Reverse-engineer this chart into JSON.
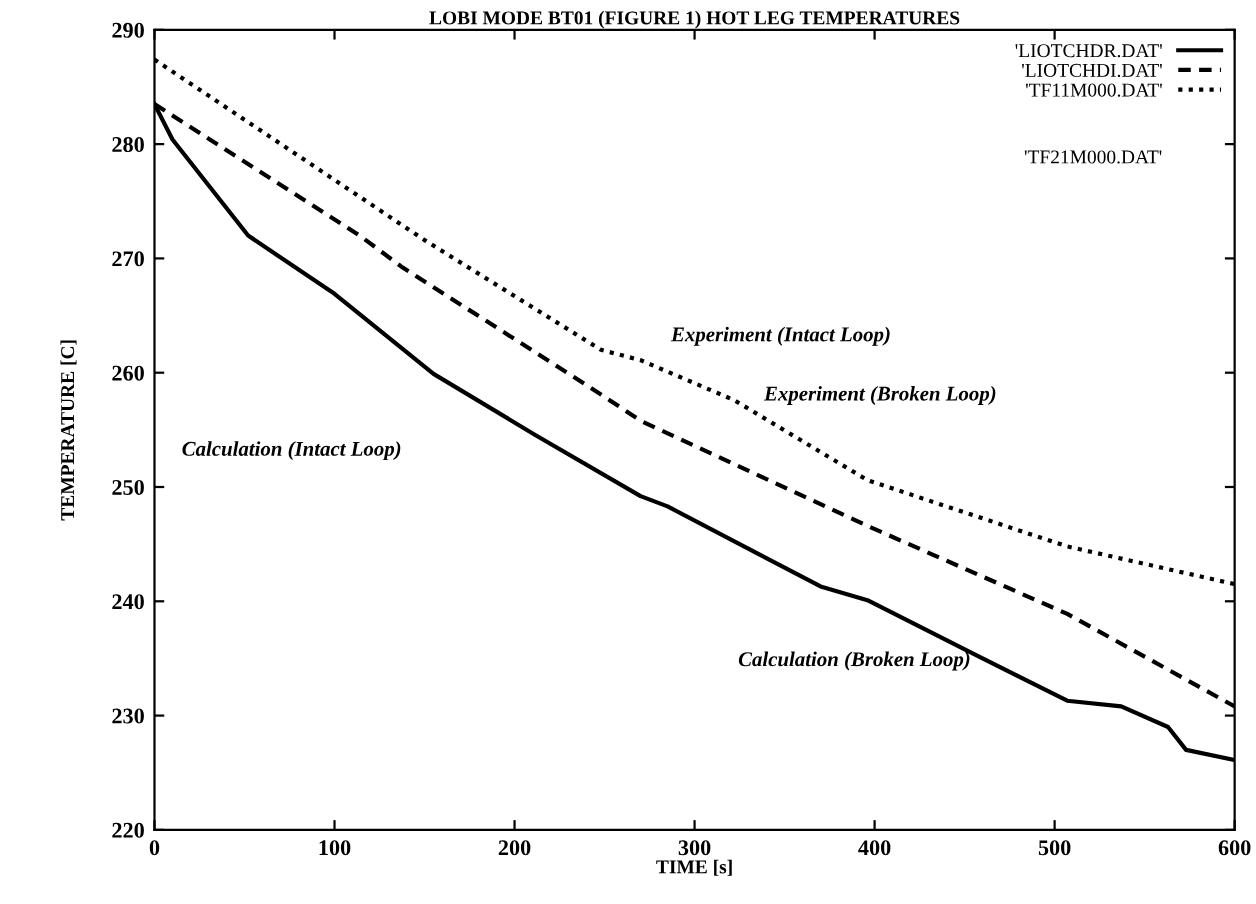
{
  "chart_data": {
    "type": "line",
    "title": "LOBI MODE BT01 (FIGURE 1) HOT LEG TEMPERATURES",
    "xlabel": "TIME [s]",
    "ylabel": "TEMPERATURE [C]",
    "xlim": [
      0,
      600
    ],
    "ylim": [
      220,
      290
    ],
    "xticks": [
      0,
      100,
      200,
      300,
      400,
      500,
      600
    ],
    "yticks": [
      220,
      230,
      240,
      250,
      260,
      270,
      280,
      290
    ],
    "grid": false,
    "legend": "top right",
    "series": [
      {
        "name": "'LIOTCHDR.DAT'",
        "color": "#000000",
        "line_style": "solid",
        "x": [
          0,
          10,
          52,
          100,
          155,
          211,
          270,
          285,
          370,
          396,
          455,
          507,
          537,
          563,
          573,
          600
        ],
        "values": [
          283.5,
          280.4,
          272,
          266.9,
          259.9,
          254.6,
          249.2,
          248.3,
          241.3,
          240.1,
          235.4,
          231.3,
          230.8,
          229,
          227,
          226.1
        ]
      },
      {
        "name": "'LIOTCHDI.DAT'",
        "color": "#000000",
        "line_style": "dashed",
        "x": [
          0,
          114,
          137,
          248,
          270,
          396,
          507,
          600
        ],
        "values": [
          283.5,
          272,
          269.3,
          258.1,
          255.8,
          246.6,
          238.9,
          230.8
        ]
      },
      {
        "name": "'TF11M000.DAT'",
        "color": "#000000",
        "line_style": "dotted",
        "x": [
          0,
          57,
          150,
          248,
          270,
          322,
          396,
          507,
          600
        ],
        "values": [
          287.4,
          281.4,
          271.6,
          262,
          261.1,
          257.6,
          250.6,
          244.8,
          241.5
        ]
      }
    ],
    "annotations": [
      "Experiment (Intact Loop)",
      "Experiment (Broken Loop)",
      "Calculation (Intact Loop)",
      "Calculation (Broken Loop)",
      "'TF21M000.DAT'"
    ]
  }
}
